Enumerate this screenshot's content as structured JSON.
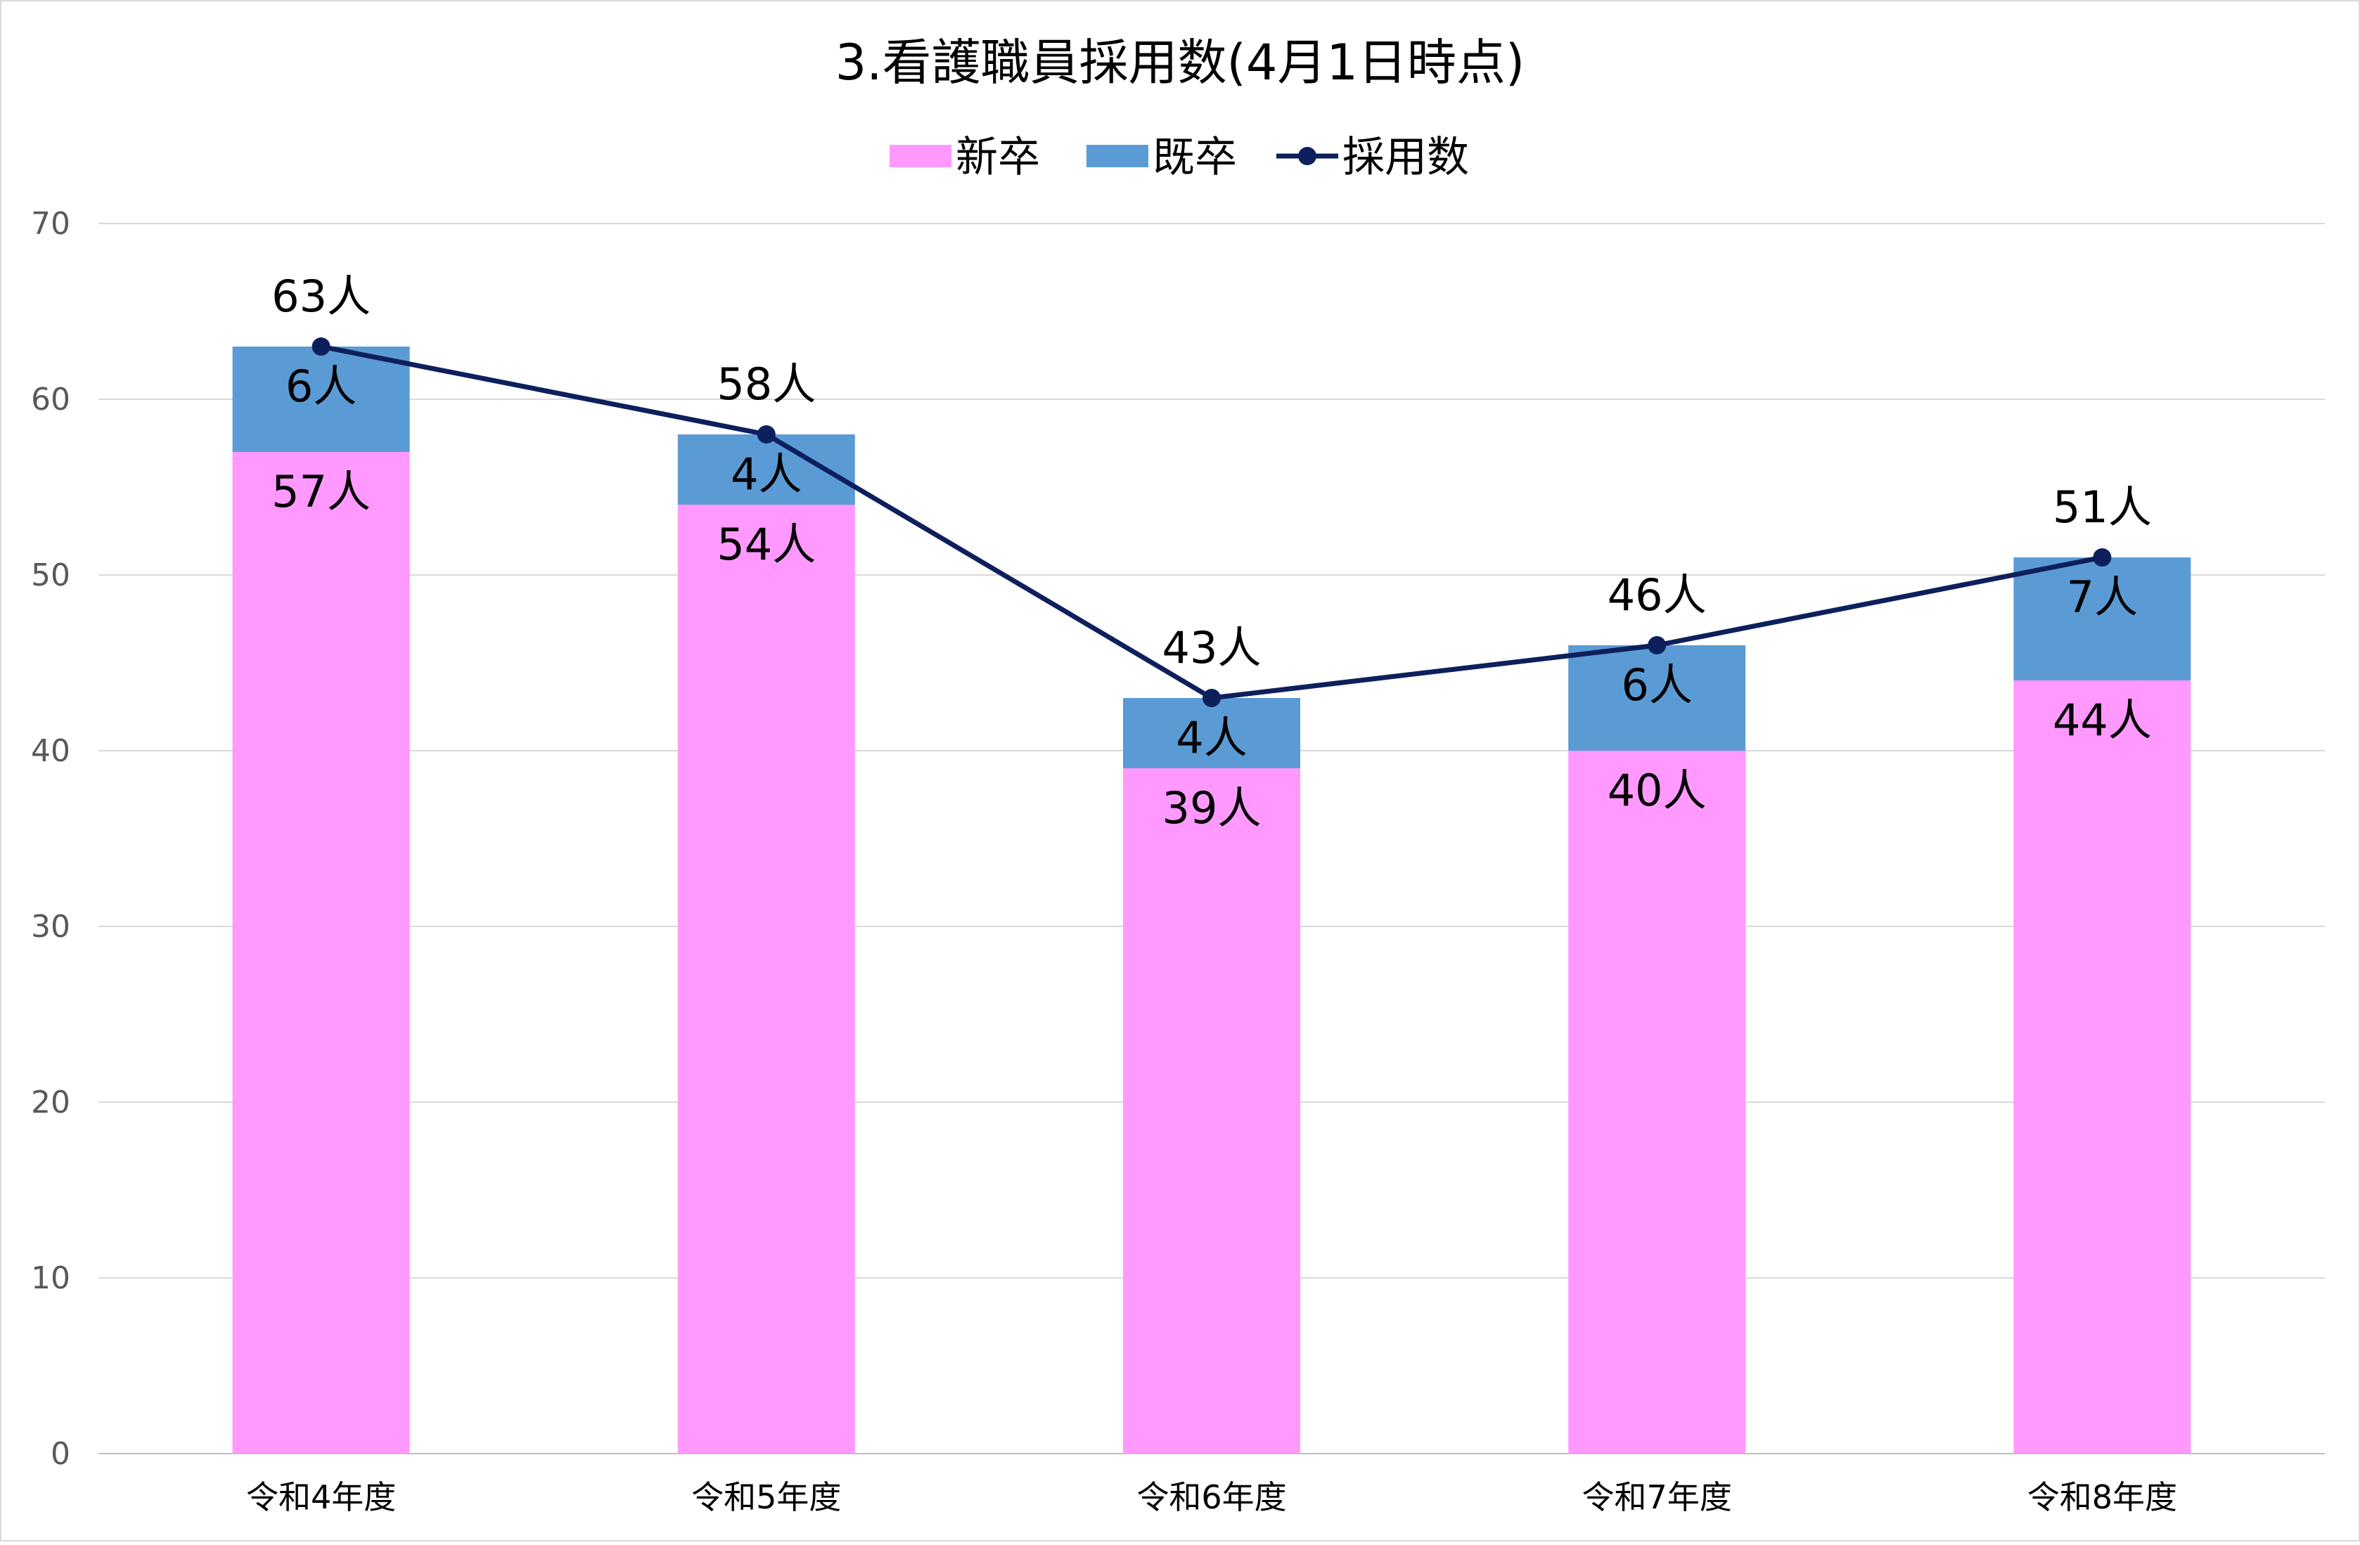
{
  "chart_data": {
    "type": "bar",
    "stacked": true,
    "title": "3.看護職員採用数(4月1日時点)",
    "categories": [
      "令和4年度",
      "令和5年度",
      "令和6年度",
      "令和7年度",
      "令和8年度"
    ],
    "series": [
      {
        "name": "新卒",
        "type": "bar",
        "color": "#FF99FF",
        "values": [
          57,
          54,
          39,
          40,
          44
        ],
        "labels": [
          "57人",
          "54人",
          "39人",
          "40人",
          "44人"
        ]
      },
      {
        "name": "既卒",
        "type": "bar",
        "color": "#5B9BD5",
        "values": [
          6,
          4,
          4,
          6,
          7
        ],
        "labels": [
          "6人",
          "4人",
          "4人",
          "6人",
          "7人"
        ]
      },
      {
        "name": "採用数",
        "type": "line",
        "color": "#0D1F5C",
        "values": [
          63,
          58,
          43,
          46,
          51
        ],
        "labels": [
          "63人",
          "58人",
          "43人",
          "46人",
          "51人"
        ]
      }
    ],
    "ylim": [
      0,
      70
    ],
    "yticks": [
      0,
      10,
      20,
      30,
      40,
      50,
      60,
      70
    ],
    "grid": true,
    "legend_position": "top"
  }
}
